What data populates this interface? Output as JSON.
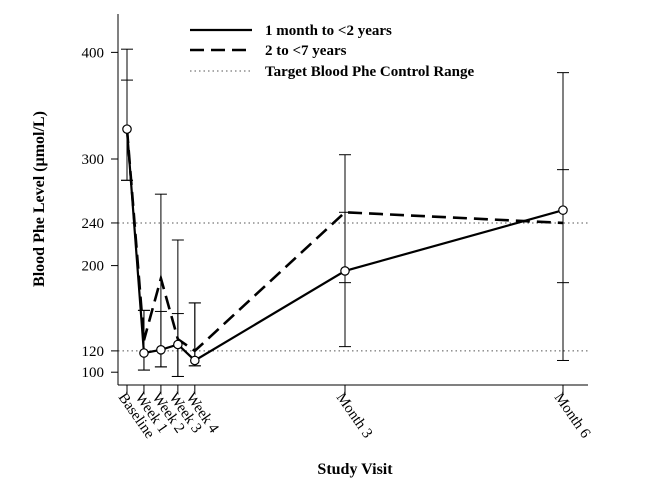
{
  "chart_data": {
    "type": "line",
    "title": "",
    "xlabel": "Study Visit",
    "ylabel": "Blood Phe Level (µmol/L)",
    "ylim": [
      88,
      436
    ],
    "yticks": [
      100,
      120,
      200,
      240,
      300,
      400
    ],
    "categories": [
      "Baseline",
      "Week 1",
      "Week 2",
      "Week 3",
      "Week 4",
      "Month 3",
      "Month 6"
    ],
    "x_days": [
      0,
      7,
      14,
      21,
      28,
      90,
      180
    ],
    "grid": false,
    "legend_position": "top",
    "reference_lines": [
      {
        "y": 120,
        "label": "Target Blood Phe Control Range"
      },
      {
        "y": 240,
        "label": ""
      }
    ],
    "series": [
      {
        "name": "1 month to <2 years",
        "style": "solid",
        "markers": true,
        "values": [
          328,
          118,
          121,
          126,
          111,
          195,
          252
        ],
        "err_low": [
          280,
          102,
          105,
          96,
          106,
          124,
          111
        ],
        "err_high": [
          374,
          158,
          157,
          155,
          165,
          304,
          381
        ]
      },
      {
        "name": "2 to <7 years",
        "style": "dashed",
        "markers": false,
        "values": [
          328,
          130,
          188,
          131,
          120,
          250,
          240
        ],
        "err_low": [
          280,
          102,
          105,
          96,
          106,
          184,
          184
        ],
        "err_high": [
          403,
          158,
          267,
          224,
          165,
          250,
          290
        ]
      }
    ]
  },
  "legend": {
    "items": [
      {
        "label": "1 month to <2 years",
        "style": "solid"
      },
      {
        "label": "2 to <7 years",
        "style": "dashed"
      },
      {
        "label": "Target Blood Phe Control Range",
        "style": "dotted"
      }
    ]
  }
}
